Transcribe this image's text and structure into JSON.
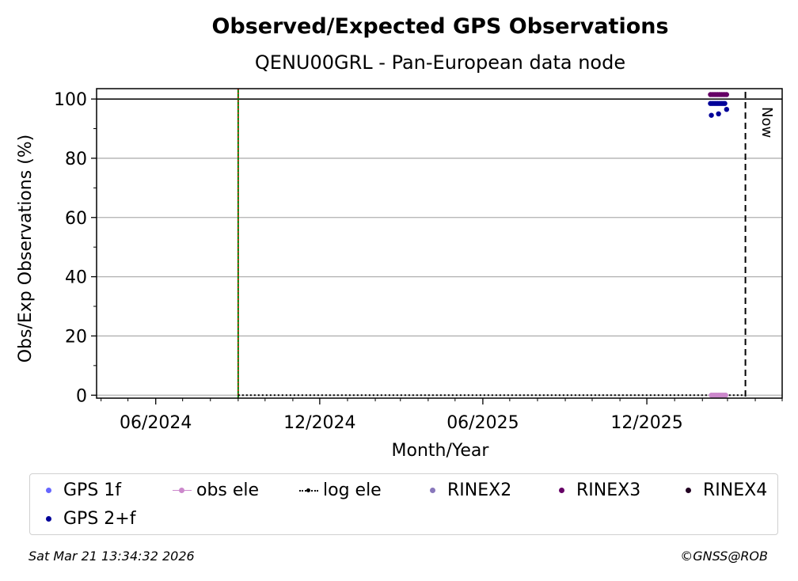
{
  "chart_data": {
    "type": "scatter",
    "title": "Observed/Expected GPS Observations",
    "subtitle": "QENU00GRL - Pan-European data node",
    "xlabel": "Month/Year",
    "ylabel": "Obs/Exp Observations (%)",
    "x_ticks": [
      "06/2024",
      "12/2024",
      "06/2025",
      "12/2025"
    ],
    "x_tick_dates": [
      "2024-06-01",
      "2024-12-01",
      "2025-06-01",
      "2025-12-01"
    ],
    "y_ticks": [
      0,
      20,
      40,
      60,
      80,
      100
    ],
    "ylim": [
      -1,
      103.5
    ],
    "xlim": [
      "2024-03-27",
      "2026-05-01"
    ],
    "grid": "horizontal",
    "reference_line_y": 100,
    "site_event_date": "2024-09-01",
    "now_date": "2026-03-21",
    "now_label": "Now",
    "log_ele_line": {
      "from": "2024-09-01",
      "to": "2026-03-21",
      "value": 0
    },
    "series": [
      {
        "name": "GPS 1f",
        "color": "#6666ff",
        "marker": "dot",
        "points": []
      },
      {
        "name": "obs ele",
        "color": "#cc88cc",
        "marker": "line-dot",
        "points": [
          [
            "2026-02-11",
            0
          ],
          [
            "2026-02-13",
            0
          ],
          [
            "2026-02-15",
            0
          ],
          [
            "2026-02-17",
            0
          ],
          [
            "2026-02-19",
            0
          ],
          [
            "2026-02-21",
            0
          ],
          [
            "2026-02-23",
            0
          ],
          [
            "2026-02-25",
            0
          ],
          [
            "2026-02-27",
            0
          ]
        ]
      },
      {
        "name": "log ele",
        "color": "#000000",
        "marker": "dotted-line",
        "points": []
      },
      {
        "name": "RINEX2",
        "color": "#8877bb",
        "marker": "dot",
        "points": []
      },
      {
        "name": "RINEX3",
        "color": "#660066",
        "marker": "dot",
        "points": [
          [
            "2026-02-10",
            101.5
          ],
          [
            "2026-02-12",
            101.5
          ],
          [
            "2026-02-14",
            101.5
          ],
          [
            "2026-02-16",
            101.5
          ],
          [
            "2026-02-18",
            101.5
          ],
          [
            "2026-02-20",
            101.5
          ],
          [
            "2026-02-22",
            101.5
          ],
          [
            "2026-02-24",
            101.5
          ],
          [
            "2026-02-26",
            101.5
          ],
          [
            "2026-02-28",
            101.5
          ]
        ]
      },
      {
        "name": "RINEX4",
        "color": "#220022",
        "marker": "dot",
        "points": []
      },
      {
        "name": "GPS 2+f",
        "color": "#000099",
        "marker": "dot",
        "points": [
          [
            "2026-02-10",
            98.5
          ],
          [
            "2026-02-12",
            98.5
          ],
          [
            "2026-02-14",
            98.5
          ],
          [
            "2026-02-16",
            98.5
          ],
          [
            "2026-02-18",
            98.5
          ],
          [
            "2026-02-20",
            98.5
          ],
          [
            "2026-02-22",
            98.5
          ],
          [
            "2026-02-24",
            98.5
          ],
          [
            "2026-02-26",
            98.5
          ],
          [
            "2026-02-11",
            94.5
          ],
          [
            "2026-02-19",
            95.0
          ],
          [
            "2026-02-28",
            96.5
          ]
        ]
      }
    ]
  },
  "footer": {
    "timestamp": "Sat Mar 21 13:34:32 2026",
    "copyright": "©GNSS@ROB"
  }
}
